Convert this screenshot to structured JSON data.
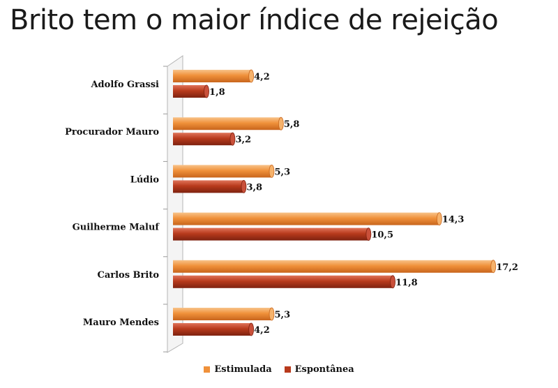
{
  "title": "Brito tem o maior índice de rejeição",
  "chart_data": {
    "type": "bar",
    "orientation": "horizontal",
    "categories": [
      "Adolfo Grassi",
      "Procurador Mauro",
      "Lúdio",
      "Guilherme Maluf",
      "Carlos Brito",
      "Mauro Mendes"
    ],
    "series": [
      {
        "name": "Estimulada",
        "values": [
          4.2,
          5.8,
          5.3,
          14.3,
          17.2,
          5.3
        ],
        "value_labels": [
          "4,2",
          "5,8",
          "5,3",
          "14,3",
          "17,2",
          "5,3"
        ],
        "color": "#F0913A"
      },
      {
        "name": "Espontânea",
        "values": [
          1.8,
          3.2,
          3.8,
          10.5,
          11.8,
          4.2
        ],
        "value_labels": [
          "1,8",
          "3,2",
          "3,8",
          "10,5",
          "11,8",
          "4,2"
        ],
        "color": "#B83A1C"
      }
    ],
    "xlim": [
      0,
      18
    ],
    "grid": false,
    "legend_position": "bottom"
  }
}
